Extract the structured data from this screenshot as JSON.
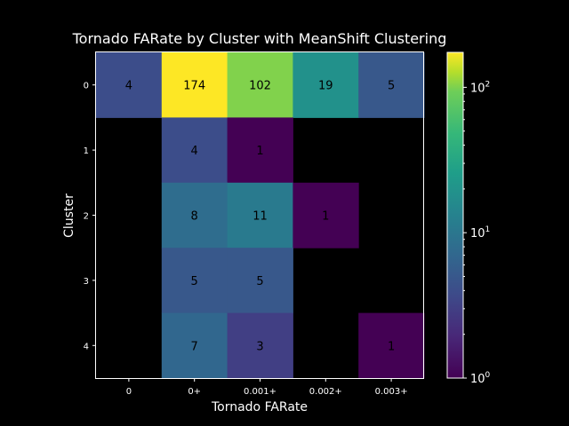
{
  "chart_data": {
    "type": "heatmap",
    "title": "Tornado FARate by Cluster with MeanShift Clustering",
    "xlabel": "Tornado FARate",
    "ylabel": "Cluster",
    "x_categories": [
      "0",
      "0+",
      "0.001+",
      "0.002+",
      "0.003+"
    ],
    "y_categories": [
      "0",
      "1",
      "2",
      "3",
      "4"
    ],
    "values": [
      [
        4,
        174,
        102,
        19,
        5
      ],
      [
        null,
        4,
        1,
        null,
        null
      ],
      [
        null,
        8,
        11,
        1,
        null
      ],
      [
        null,
        5,
        5,
        null,
        null
      ],
      [
        null,
        7,
        3,
        null,
        1
      ]
    ],
    "colorbar": {
      "scale": "log",
      "range": [
        1,
        174
      ],
      "colormap": "viridis",
      "tick_values": [
        1,
        10,
        100
      ],
      "tick_labels": [
        "10",
        "10",
        "10"
      ],
      "tick_exponents": [
        "0",
        "1",
        "2"
      ]
    },
    "colors": {
      "background": "#000000",
      "foreground": "#ffffff"
    }
  }
}
